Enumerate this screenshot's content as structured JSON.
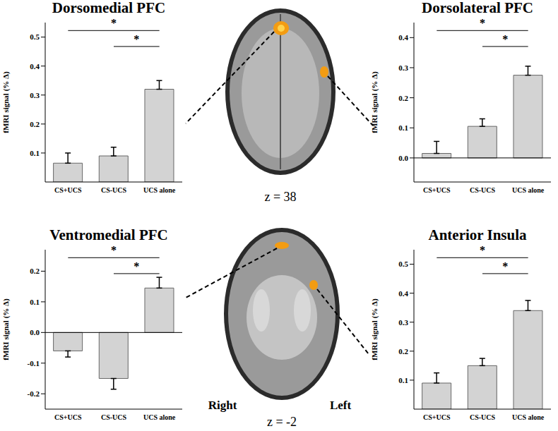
{
  "chart_data": [
    {
      "type": "bar",
      "title": "Dorsomedial PFC",
      "ylabel": "fMRI signal (% Δ)",
      "categories": [
        "CS+UCS",
        "CS-UCS",
        "UCS alone"
      ],
      "values": [
        0.065,
        0.09,
        0.32
      ],
      "errors": [
        0.035,
        0.03,
        0.03
      ],
      "color": "#d3d3d3",
      "ylim": [
        0,
        0.55
      ],
      "yticks": [
        0.1,
        0.2,
        0.3,
        0.4,
        0.5
      ],
      "significance": [
        {
          "from": "CS+UCS",
          "to": "UCS alone",
          "label": "*"
        },
        {
          "from": "CS-UCS",
          "to": "UCS alone",
          "label": "*"
        }
      ]
    },
    {
      "type": "bar",
      "title": "Dorsolateral PFC",
      "ylabel": "fMRI signal (% Δ)",
      "categories": [
        "CS+UCS",
        "CS-UCS",
        "UCS alone"
      ],
      "values": [
        0.015,
        0.105,
        0.275
      ],
      "errors": [
        0.04,
        0.025,
        0.03
      ],
      "color": "#d3d3d3",
      "ylim": [
        -0.08,
        0.45
      ],
      "yticks": [
        {
          "value": 0,
          "label": "0.0"
        },
        0.1,
        0.2,
        0.3,
        0.4
      ],
      "significance": [
        {
          "from": "CS+UCS",
          "to": "UCS alone",
          "label": "*"
        },
        {
          "from": "CS-UCS",
          "to": "UCS alone",
          "label": "*"
        }
      ]
    },
    {
      "type": "bar",
      "title": "Ventromedial PFC",
      "ylabel": "fMRI signal (% Δ)",
      "categories": [
        "CS+UCS",
        "CS-UCS",
        "UCS alone"
      ],
      "values": [
        -0.06,
        -0.15,
        0.145
      ],
      "errors": [
        0.02,
        0.035,
        0.035
      ],
      "color": "#d3d3d3",
      "ylim": [
        -0.25,
        0.27
      ],
      "yticks": [
        -0.2,
        -0.1,
        {
          "value": 0,
          "label": "0.0"
        },
        0.1,
        0.2
      ],
      "significance": [
        {
          "from": "CS+UCS",
          "to": "UCS alone",
          "label": "*"
        },
        {
          "from": "CS-UCS",
          "to": "UCS alone",
          "label": "*"
        }
      ]
    },
    {
      "type": "bar",
      "title": "Anterior Insula",
      "ylabel": "fMRI signal (% Δ)",
      "categories": [
        "CS+UCS",
        "CS-UCS",
        "UCS alone"
      ],
      "values": [
        0.09,
        0.15,
        0.34
      ],
      "errors": [
        0.035,
        0.025,
        0.035
      ],
      "color": "#d3d3d3",
      "ylim": [
        0,
        0.55
      ],
      "yticks": [
        0.1,
        0.2,
        0.3,
        0.4,
        0.5
      ],
      "significance": [
        {
          "from": "CS+UCS",
          "to": "UCS alone",
          "label": "*"
        },
        {
          "from": "CS-UCS",
          "to": "UCS alone",
          "label": "*"
        }
      ]
    }
  ],
  "images": [
    {
      "label": "z = 38"
    },
    {
      "label": "z = -2",
      "side_labels": [
        "Right",
        "Left"
      ]
    }
  ]
}
